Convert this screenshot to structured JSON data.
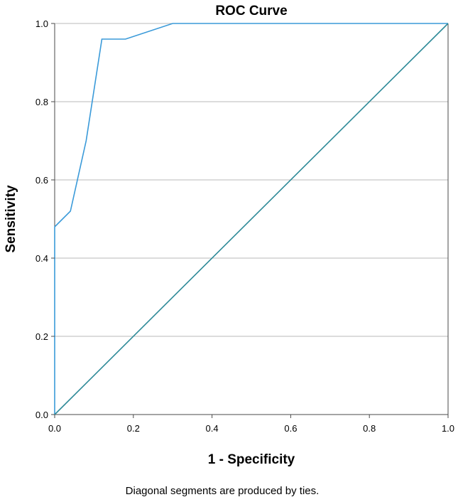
{
  "chart_data": {
    "type": "line",
    "title": "ROC Curve",
    "xlabel": "1 - Specificity",
    "ylabel": "Sensitivity",
    "footnote": "Diagonal segments are produced by ties.",
    "xlim": [
      0.0,
      1.0
    ],
    "ylim": [
      0.0,
      1.0
    ],
    "x_ticks": [
      "0.0",
      "0.2",
      "0.4",
      "0.6",
      "0.8",
      "1.0"
    ],
    "y_ticks": [
      "0.0",
      "0.2",
      "0.4",
      "0.6",
      "0.8",
      "1.0"
    ],
    "grid": "horizontal",
    "series": [
      {
        "color": "#3a9ad9",
        "points": [
          [
            0.0,
            0.0
          ],
          [
            0.0,
            0.48
          ],
          [
            0.04,
            0.52
          ],
          [
            0.08,
            0.7
          ],
          [
            0.12,
            0.96
          ],
          [
            0.18,
            0.96
          ],
          [
            0.3,
            1.0
          ],
          [
            1.0,
            1.0
          ]
        ]
      },
      {
        "color": "#2e8a98",
        "points": [
          [
            0.0,
            0.0
          ],
          [
            1.0,
            1.0
          ]
        ]
      }
    ]
  }
}
